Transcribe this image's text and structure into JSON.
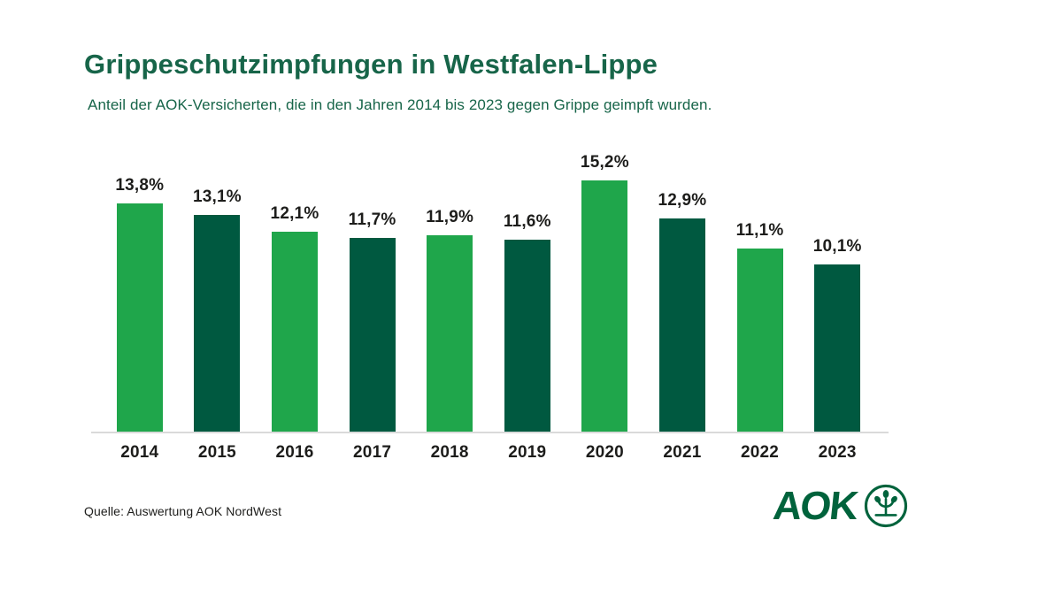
{
  "header": {
    "title": "Grippeschutzimpfungen in Westfalen-Lippe",
    "subtitle": "Anteil der AOK-Versicherten, die in den Jahren 2014 bis 2023 gegen Grippe geimpft wurden."
  },
  "chart_data": {
    "type": "bar",
    "title": "Grippeschutzimpfungen in Westfalen-Lippe",
    "subtitle": "Anteil der AOK-Versicherten, die in den Jahren 2014 bis 2023 gegen Grippe geimpft wurden.",
    "categories": [
      "2014",
      "2015",
      "2016",
      "2017",
      "2018",
      "2019",
      "2020",
      "2021",
      "2022",
      "2023"
    ],
    "values": [
      13.8,
      13.1,
      12.1,
      11.7,
      11.9,
      11.6,
      15.2,
      12.9,
      11.1,
      10.1
    ],
    "value_labels": [
      "13,8%",
      "13,1%",
      "12,1%",
      "11,7%",
      "11,9%",
      "11,6%",
      "15,2%",
      "12,9%",
      "11,1%",
      "10,1%"
    ],
    "bar_colors": [
      "#1fa64b",
      "#005940",
      "#1fa64b",
      "#005940",
      "#1fa64b",
      "#005940",
      "#1fa64b",
      "#005940",
      "#1fa64b",
      "#005940"
    ],
    "unit": "%",
    "ylim": [
      0,
      17
    ],
    "grid": false,
    "legend": "none",
    "colors": {
      "light_green": "#1fa64b",
      "dark_green": "#005940",
      "axis_line": "#dadada",
      "label_text": "#1d1d1b",
      "title_green": "#176549"
    }
  },
  "footer": {
    "source": "Quelle: Auswertung AOK NordWest",
    "logo": {
      "text": "AOK",
      "icon": "aok-tree-icon",
      "color": "#00633c"
    }
  }
}
